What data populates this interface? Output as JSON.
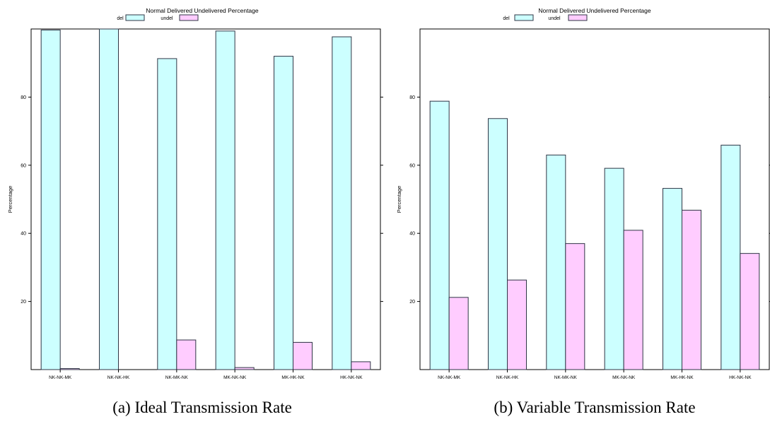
{
  "chart_data": [
    {
      "type": "bar",
      "title": "Normal Delivered Undelivered Percentage",
      "ylabel": "Percentage",
      "caption": "(a) Ideal Transmission Rate",
      "categories": [
        "NK-NK-MK",
        "NK-NK-HK",
        "NK-MK-NK",
        "MK-NK-NK",
        "MK-HK-NK",
        "HK-NK-NK"
      ],
      "series": [
        {
          "name": "del",
          "values": [
            99.7,
            100,
            91.3,
            99.4,
            92.0,
            97.7
          ]
        },
        {
          "name": "undel",
          "values": [
            0.3,
            0,
            8.7,
            0.6,
            8.0,
            2.3
          ]
        }
      ],
      "yticks": [
        20,
        40,
        60,
        80
      ],
      "ylim": [
        0,
        100
      ],
      "legend_position": "top",
      "grid": false
    },
    {
      "type": "bar",
      "title": "Normal Delivered Undelivered Percentage",
      "ylabel": "Percentage",
      "caption": "(b) Variable Transmission Rate",
      "categories": [
        "NK-NK-MK",
        "NK-NK-HK",
        "NK-MK-NK",
        "MK-NK-NK",
        "MK-HK-NK",
        "HK-NK-NK"
      ],
      "series": [
        {
          "name": "del",
          "values": [
            78.8,
            73.7,
            63.0,
            59.1,
            53.2,
            65.9
          ]
        },
        {
          "name": "undel",
          "values": [
            21.2,
            26.3,
            37.0,
            40.9,
            46.8,
            34.1
          ]
        }
      ],
      "yticks": [
        20,
        40,
        60,
        80
      ],
      "ylim": [
        0,
        100
      ],
      "legend_position": "top",
      "grid": false
    }
  ],
  "colors": {
    "del": "#ccffff",
    "undel": "#ffccff",
    "stroke": "#2f3545"
  }
}
